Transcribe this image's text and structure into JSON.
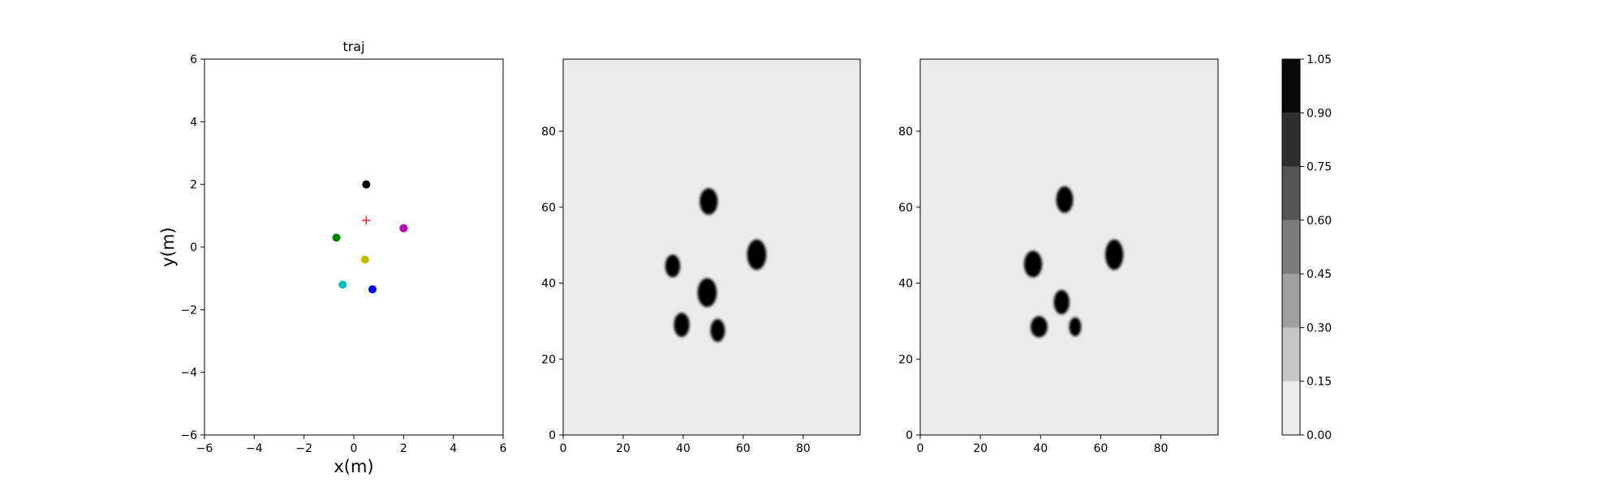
{
  "chart_data": [
    {
      "type": "scatter",
      "title": "traj",
      "xlabel": "x(m)",
      "ylabel": "y(m)",
      "xlim": [
        -6,
        6
      ],
      "ylim": [
        -6,
        6
      ],
      "xticks": [
        "−6",
        "−4",
        "−2",
        "0",
        "2",
        "4",
        "6"
      ],
      "yticks": [
        "−6",
        "−4",
        "−2",
        "0",
        "2",
        "4",
        "6"
      ],
      "grid": false,
      "points": [
        {
          "x": 0.5,
          "y": 2.0,
          "color": "#000000",
          "marker": "circle"
        },
        {
          "x": -0.7,
          "y": 0.3,
          "color": "#008000",
          "marker": "circle"
        },
        {
          "x": 2.0,
          "y": 0.6,
          "color": "#bf00bf",
          "marker": "circle"
        },
        {
          "x": 0.45,
          "y": -0.4,
          "color": "#bfbf00",
          "marker": "circle"
        },
        {
          "x": -0.45,
          "y": -1.2,
          "color": "#00bfbf",
          "marker": "circle"
        },
        {
          "x": 0.75,
          "y": -1.35,
          "color": "#0000ff",
          "marker": "circle"
        },
        {
          "x": 0.5,
          "y": 0.85,
          "color": "#ff0000",
          "marker": "plus"
        }
      ]
    },
    {
      "type": "heatmap",
      "title": "",
      "xlim": [
        0,
        99
      ],
      "ylim": [
        0,
        99
      ],
      "xticks": [
        "0",
        "20",
        "40",
        "60",
        "80"
      ],
      "yticks": [
        "0",
        "20",
        "40",
        "60",
        "80"
      ],
      "background_value": 0.05,
      "blobs": [
        {
          "cx": 48.5,
          "cy": 61.5,
          "rx": 3.0,
          "ry": 3.5,
          "value": 1.0
        },
        {
          "cx": 64.5,
          "cy": 47.5,
          "rx": 3.2,
          "ry": 4.0,
          "value": 1.0
        },
        {
          "cx": 36.5,
          "cy": 44.5,
          "rx": 2.5,
          "ry": 3.0,
          "value": 1.0
        },
        {
          "cx": 48.0,
          "cy": 37.5,
          "rx": 3.2,
          "ry": 3.8,
          "value": 1.0
        },
        {
          "cx": 39.5,
          "cy": 29.0,
          "rx": 2.6,
          "ry": 3.2,
          "value": 1.0
        },
        {
          "cx": 51.5,
          "cy": 27.5,
          "rx": 2.4,
          "ry": 3.0,
          "value": 1.0
        }
      ]
    },
    {
      "type": "heatmap",
      "title": "",
      "xlim": [
        0,
        99
      ],
      "ylim": [
        0,
        99
      ],
      "xticks": [
        "0",
        "20",
        "40",
        "60",
        "80"
      ],
      "yticks": [
        "0",
        "20",
        "40",
        "60",
        "80"
      ],
      "background_value": 0.05,
      "blobs": [
        {
          "cx": 48.0,
          "cy": 62.0,
          "rx": 2.8,
          "ry": 3.5,
          "value": 1.0
        },
        {
          "cx": 64.5,
          "cy": 47.5,
          "rx": 3.0,
          "ry": 4.0,
          "value": 1.0
        },
        {
          "cx": 37.5,
          "cy": 45.0,
          "rx": 3.0,
          "ry": 3.5,
          "value": 1.0
        },
        {
          "cx": 47.0,
          "cy": 35.0,
          "rx": 2.6,
          "ry": 3.2,
          "value": 1.0
        },
        {
          "cx": 39.5,
          "cy": 28.5,
          "rx": 2.8,
          "ry": 2.8,
          "value": 1.0
        },
        {
          "cx": 51.5,
          "cy": 28.5,
          "rx": 2.0,
          "ry": 2.5,
          "value": 1.0
        }
      ]
    },
    {
      "type": "colorbar",
      "ticks": [
        "0.00",
        "0.15",
        "0.30",
        "0.45",
        "0.60",
        "0.75",
        "0.90",
        "1.05"
      ],
      "levels": [
        {
          "from": 0.0,
          "to": 0.15,
          "color": "#ebebeb"
        },
        {
          "from": 0.15,
          "to": 0.3,
          "color": "#c6c6c6"
        },
        {
          "from": 0.3,
          "to": 0.45,
          "color": "#a0a0a0"
        },
        {
          "from": 0.45,
          "to": 0.6,
          "color": "#7b7b7b"
        },
        {
          "from": 0.6,
          "to": 0.75,
          "color": "#555555"
        },
        {
          "from": 0.75,
          "to": 0.9,
          "color": "#2e2e2e"
        },
        {
          "from": 0.9,
          "to": 1.05,
          "color": "#080808"
        }
      ]
    }
  ]
}
